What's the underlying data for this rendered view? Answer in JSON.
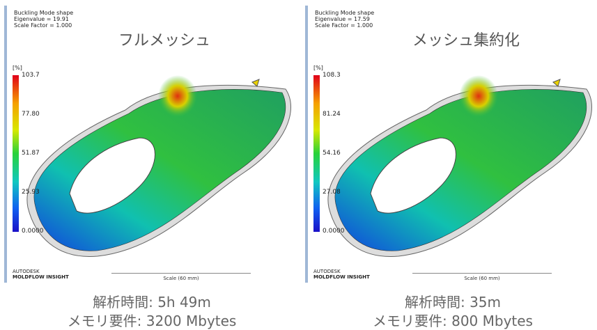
{
  "panels": [
    {
      "header": [
        "Buckling Mode shape",
        "Eigenvalue = 19.91",
        "Scale Factor = 1.000"
      ],
      "title": "フルメッシュ",
      "unit": "[%]",
      "legend_labels": [
        "103.7",
        "77.80",
        "51.87",
        "25.93",
        "0.0000"
      ],
      "brand": "AUTODESK",
      "product": "MOLDFLOW INSIGHT",
      "scale": "Scale (60 mm)",
      "caption": [
        "解析時間: 5h 49m",
        "メモリ要件: 3200 Mbytes"
      ]
    },
    {
      "header": [
        "Buckling Mode shape",
        "Eigenvalue = 17.59",
        "Scale Factor = 1.000"
      ],
      "title": "メッシュ集約化",
      "unit": "[%]",
      "legend_labels": [
        "108.3",
        "81.24",
        "54.16",
        "27.08",
        "0.0000"
      ],
      "brand": "AUTODESK",
      "product": "MOLDFLOW INSIGHT",
      "scale": "Scale (60 mm)",
      "caption": [
        "解析時間: 35m",
        "メモリ要件: 800 Mbytes"
      ]
    }
  ]
}
